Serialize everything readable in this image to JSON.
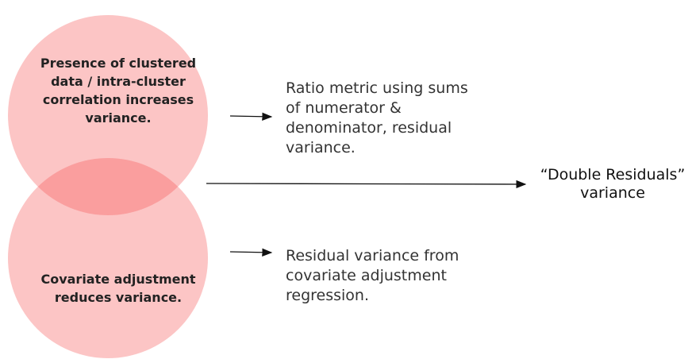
{
  "circles": [
    {
      "label": [
        "Presence of clustered",
        "data / intra-cluster",
        "correlation increases",
        "variance."
      ]
    },
    {
      "label": [
        "Covariate adjustment",
        "reduces variance."
      ]
    }
  ],
  "descriptions": [
    [
      "Ratio metric using sums",
      "of numerator &",
      "denominator, residual",
      "variance."
    ],
    [
      "Residual variance from",
      "covariate adjustment",
      "regression."
    ]
  ],
  "result": [
    "“Double Residuals”",
    "variance"
  ]
}
